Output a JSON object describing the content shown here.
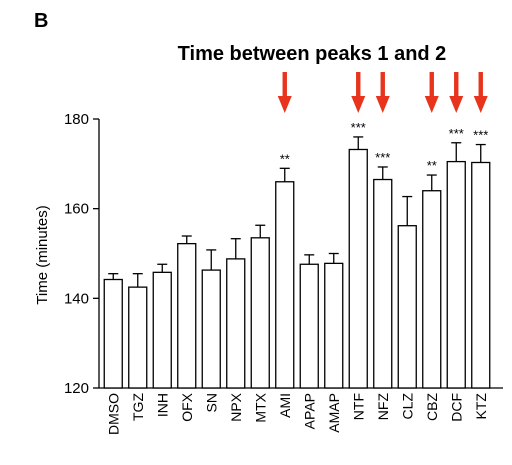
{
  "panel_label": "B",
  "chart_data": {
    "type": "bar",
    "title": "Time between peaks 1 and 2",
    "xlabel": "",
    "ylabel": "Time (minutes)",
    "ylim": [
      120,
      180
    ],
    "yticks": [
      120,
      140,
      160,
      180
    ],
    "grid": false,
    "categories": [
      "DMSO",
      "TGZ",
      "INH",
      "OFX",
      "SN",
      "NPX",
      "MTX",
      "AMI",
      "APAP",
      "AMAP",
      "NTF",
      "NFZ",
      "CLZ",
      "CBZ",
      "DCF",
      "KTZ"
    ],
    "values": [
      144.2,
      142.5,
      145.8,
      152.2,
      146.3,
      148.8,
      153.5,
      166.0,
      147.6,
      147.8,
      173.2,
      166.5,
      156.2,
      164.0,
      170.5,
      170.3
    ],
    "errors": [
      1.3,
      3.0,
      1.8,
      1.7,
      4.5,
      4.5,
      2.8,
      3.0,
      2.1,
      2.2,
      2.8,
      2.8,
      6.5,
      3.5,
      4.2,
      4.0
    ],
    "significance": [
      "",
      "",
      "",
      "",
      "",
      "",
      "",
      "**",
      "",
      "",
      "***",
      "***",
      "",
      "**",
      "***",
      "***"
    ],
    "arrows": [
      false,
      false,
      false,
      false,
      false,
      false,
      false,
      true,
      false,
      false,
      true,
      true,
      false,
      true,
      true,
      true
    ],
    "colors": {
      "bar_fill": "#ffffff",
      "bar_stroke": "#000000",
      "arrow": "#e8341c"
    }
  }
}
